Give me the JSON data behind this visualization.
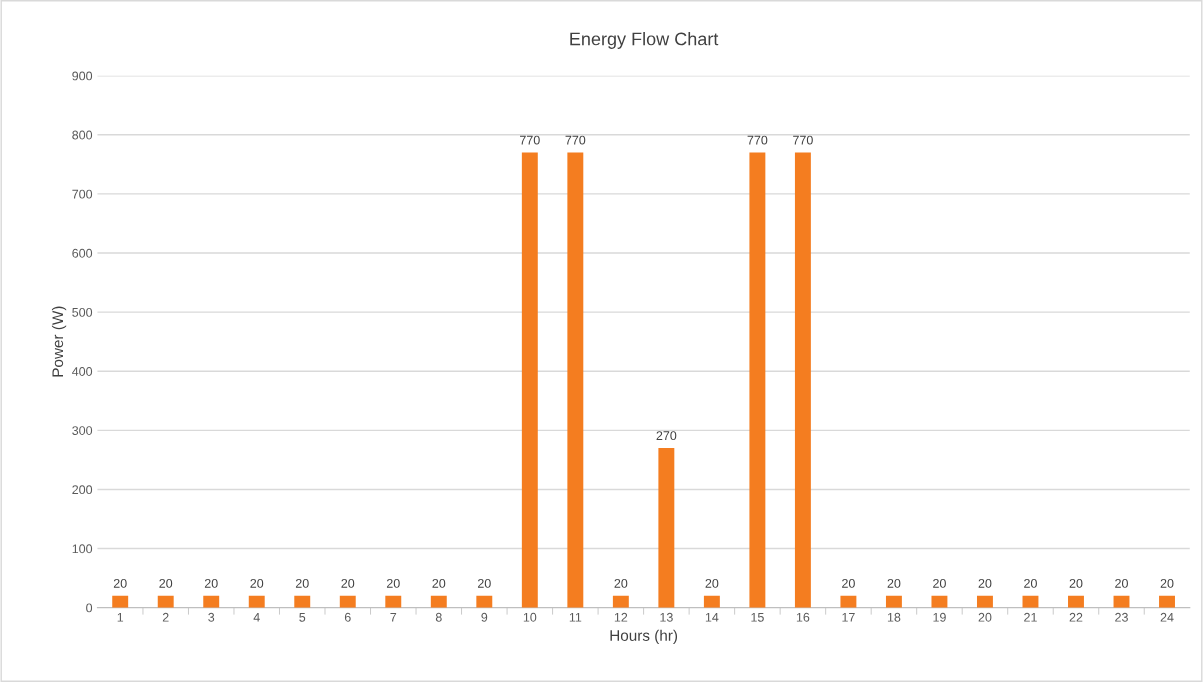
{
  "chart_data": {
    "type": "bar",
    "title": "Energy Flow Chart",
    "xlabel": "Hours (hr)",
    "ylabel": "Power (W)",
    "categories": [
      "1",
      "2",
      "3",
      "4",
      "5",
      "6",
      "7",
      "8",
      "9",
      "10",
      "11",
      "12",
      "13",
      "14",
      "15",
      "16",
      "17",
      "18",
      "19",
      "20",
      "21",
      "22",
      "23",
      "24"
    ],
    "values": [
      20,
      20,
      20,
      20,
      20,
      20,
      20,
      20,
      20,
      770,
      770,
      20,
      270,
      20,
      770,
      770,
      20,
      20,
      20,
      20,
      20,
      20,
      20,
      20
    ],
    "color": "#f47d20",
    "ylim": [
      0,
      900
    ],
    "yticks": [
      0,
      100,
      200,
      300,
      400,
      500,
      600,
      700,
      800,
      900
    ],
    "grid": "y",
    "data_labels": true
  }
}
